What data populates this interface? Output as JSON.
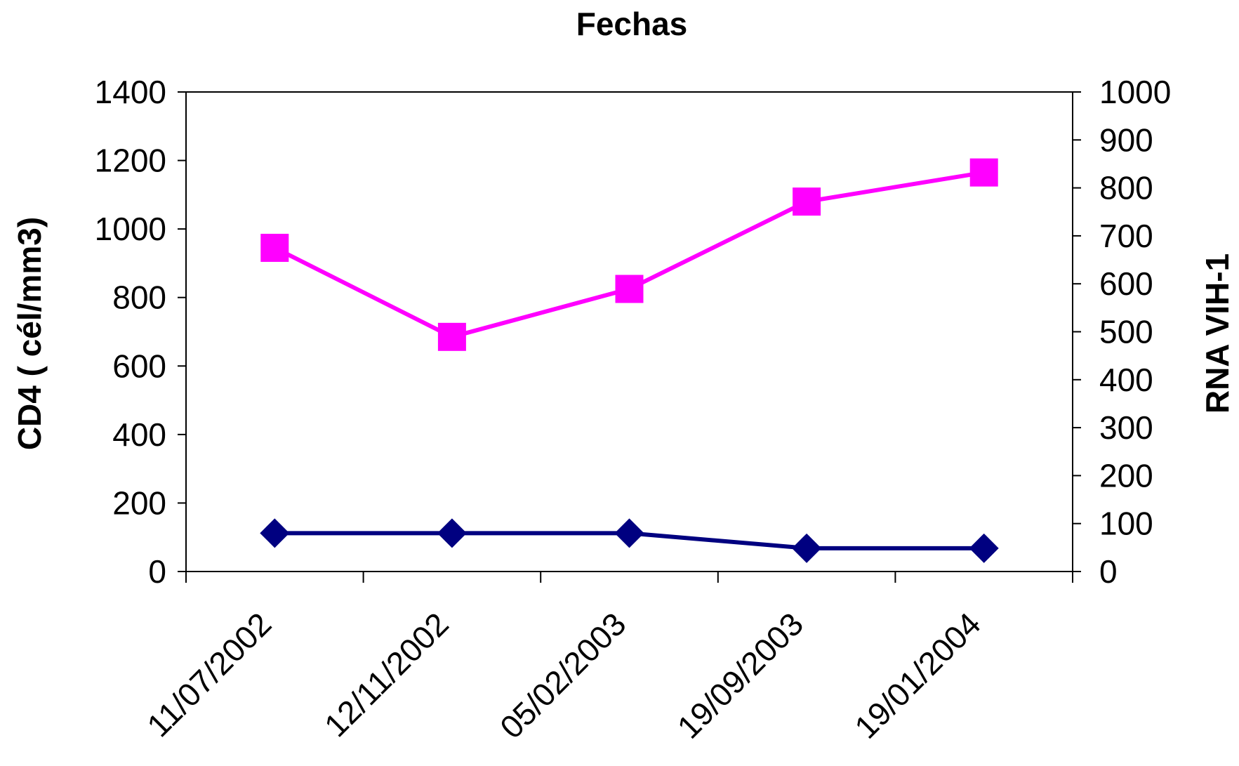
{
  "chart_data": {
    "type": "line",
    "title": "Fechas",
    "xlabel": "",
    "ylabel": "CD4 ( cél/mm3)",
    "y2label": "RNA VIH-1",
    "categories": [
      "11/07/2002",
      "12/11/2002",
      "05/02/2003",
      "19/09/2003",
      "19/01/2004"
    ],
    "ylim": [
      0,
      1400
    ],
    "yticks": [
      0,
      200,
      400,
      600,
      800,
      1000,
      1200,
      1400
    ],
    "y2lim": [
      0,
      1000
    ],
    "y2ticks": [
      0,
      100,
      200,
      300,
      400,
      500,
      600,
      700,
      800,
      900,
      1000
    ],
    "grid": false,
    "legend": "none",
    "series": [
      {
        "axis": "left",
        "marker": "square",
        "color": "#ff00ff",
        "values": [
          945,
          685,
          825,
          1080,
          1165
        ]
      },
      {
        "axis": "left",
        "marker": "diamond",
        "color": "#000080",
        "values": [
          112,
          112,
          112,
          68,
          68
        ]
      }
    ]
  }
}
